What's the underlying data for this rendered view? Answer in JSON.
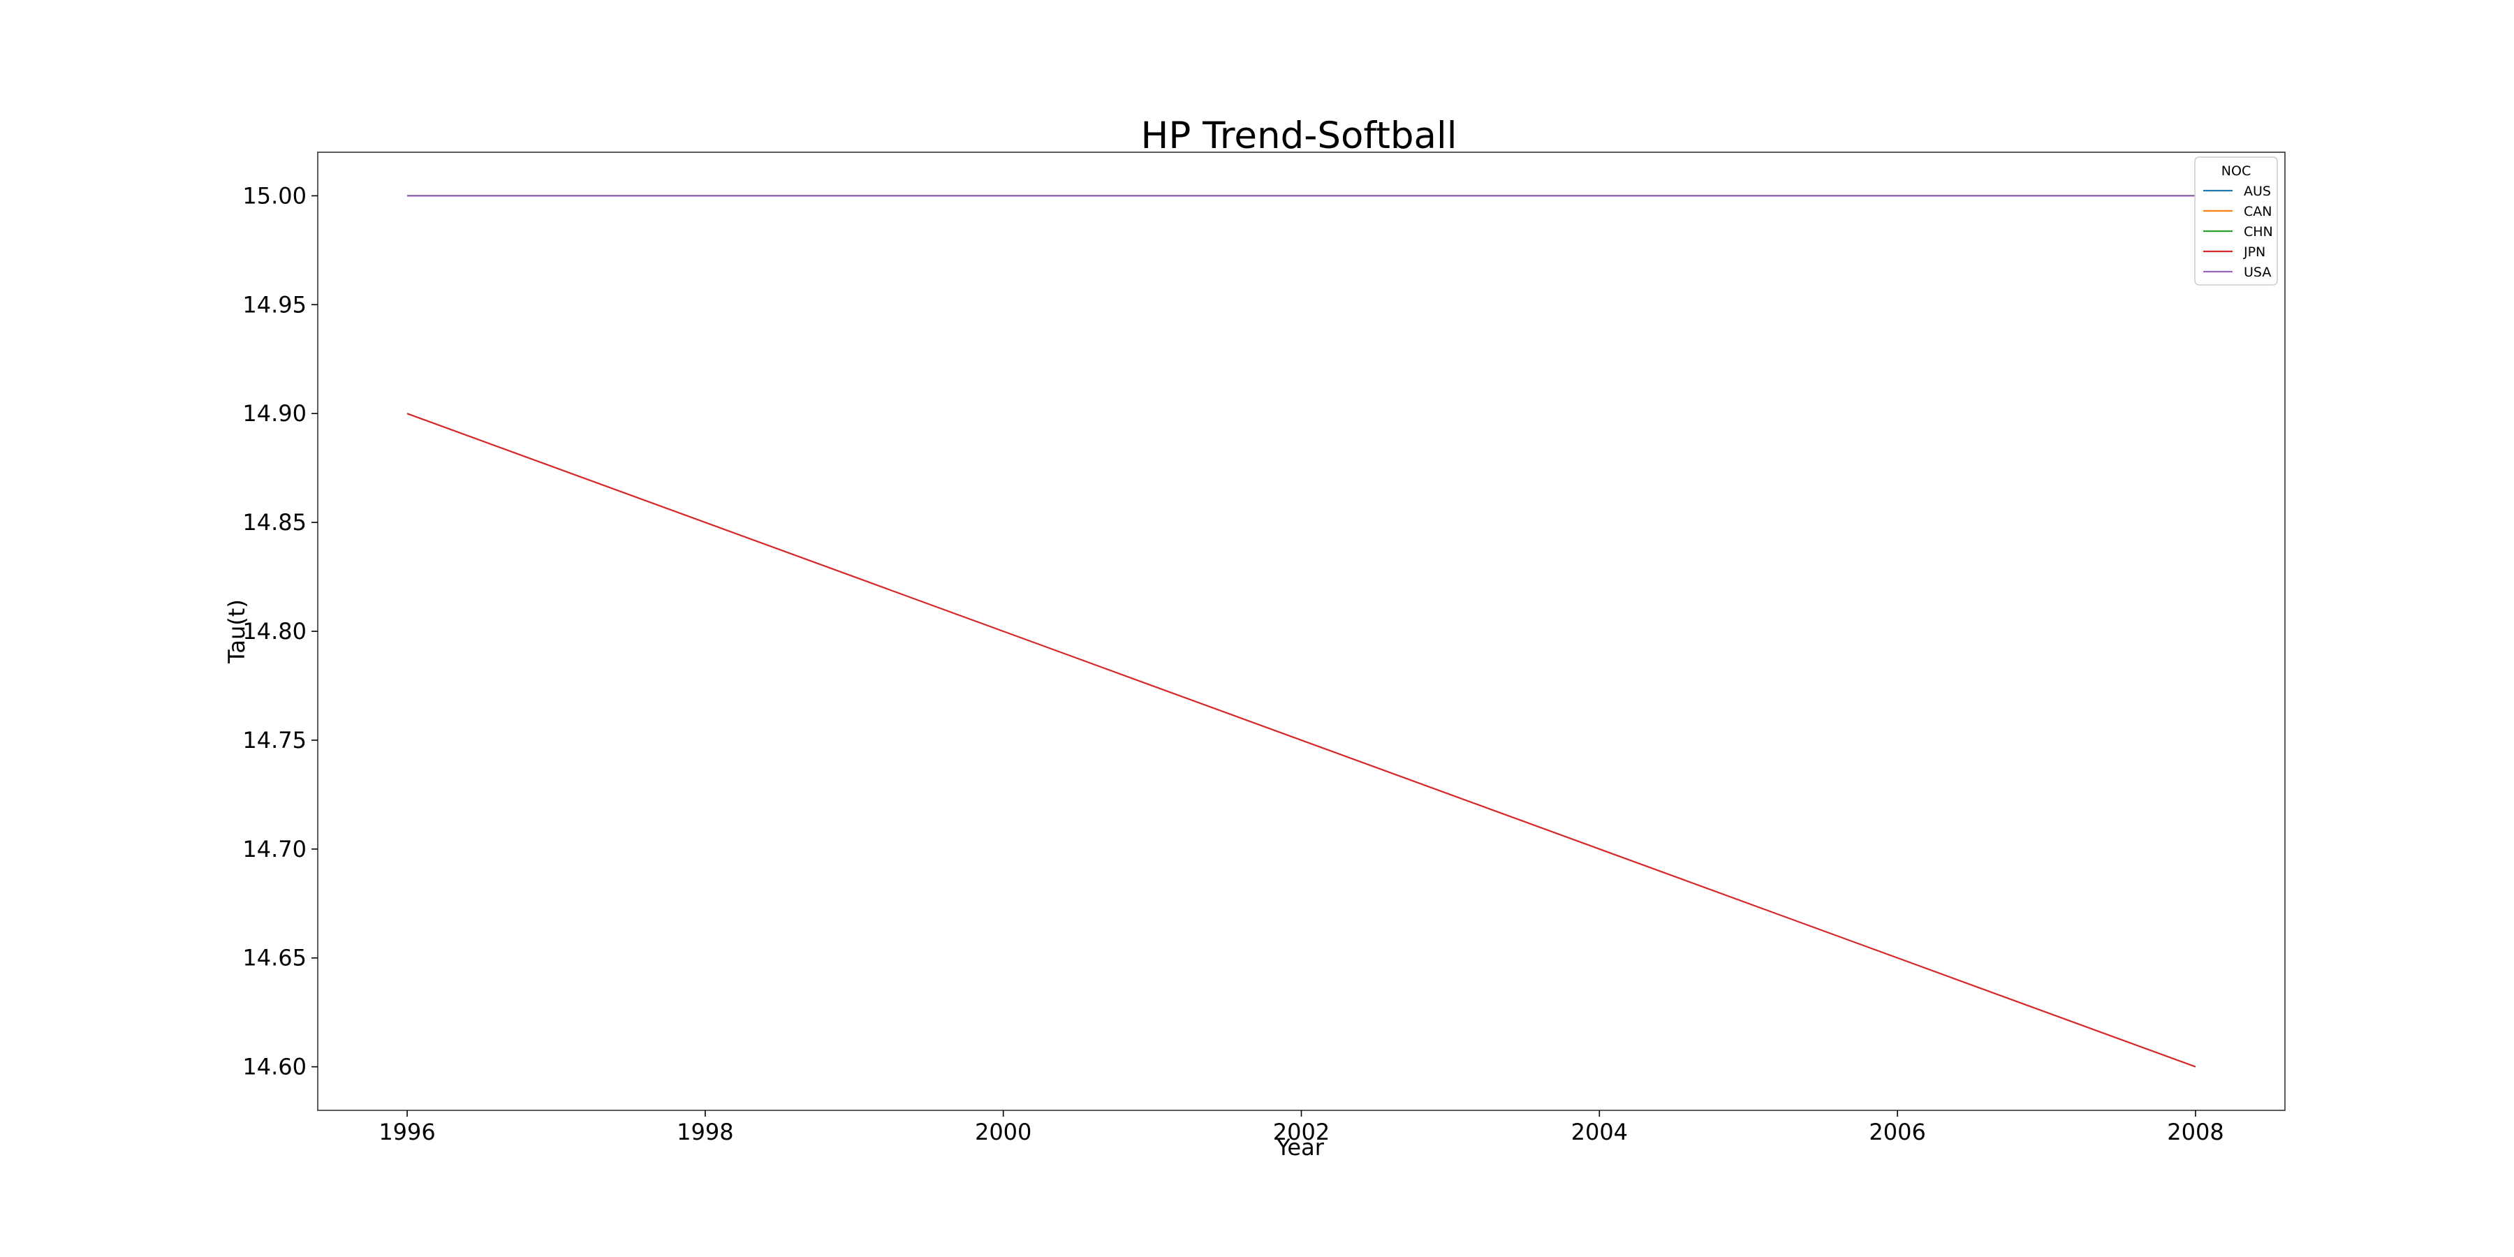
{
  "chart_data": {
    "type": "line",
    "title": "HP Trend-Softball",
    "xlabel": "Year",
    "ylabel": "Tau(t)",
    "xlim": [
      1995.4,
      2008.6
    ],
    "ylim": [
      14.58,
      15.02
    ],
    "x_ticks": [
      1996,
      1998,
      2000,
      2002,
      2004,
      2006,
      2008
    ],
    "x_tick_labels": [
      "1996",
      "1998",
      "2000",
      "2002",
      "2004",
      "2006",
      "2008"
    ],
    "y_ticks": [
      14.6,
      14.65,
      14.7,
      14.75,
      14.8,
      14.85,
      14.9,
      14.95,
      15.0
    ],
    "y_tick_labels": [
      "14.60",
      "14.65",
      "14.70",
      "14.75",
      "14.80",
      "14.85",
      "14.90",
      "14.95",
      "15.00"
    ],
    "grid": false,
    "legend": {
      "title": "NOC",
      "placement": "top-right"
    },
    "series": [
      {
        "name": "AUS",
        "color": "#1f77b4",
        "x": [
          1996,
          2000,
          2004,
          2008
        ],
        "y": [
          15.0,
          15.0,
          15.0,
          15.0
        ]
      },
      {
        "name": "CAN",
        "color": "#ff7f0e",
        "x": [
          1996,
          2000,
          2004,
          2008
        ],
        "y": [
          15.0,
          15.0,
          15.0,
          15.0
        ]
      },
      {
        "name": "CHN",
        "color": "#2ca02c",
        "x": [
          1996,
          2000,
          2004,
          2008
        ],
        "y": [
          15.0,
          15.0,
          15.0,
          15.0
        ]
      },
      {
        "name": "JPN",
        "color": "#d62728",
        "x": [
          1996,
          2000,
          2004,
          2008
        ],
        "y": [
          14.9,
          14.8,
          14.7,
          14.6
        ]
      },
      {
        "name": "USA",
        "color": "#9467bd",
        "x": [
          1996,
          2000,
          2004,
          2008
        ],
        "y": [
          15.0,
          15.0,
          15.0,
          15.0
        ]
      }
    ]
  }
}
